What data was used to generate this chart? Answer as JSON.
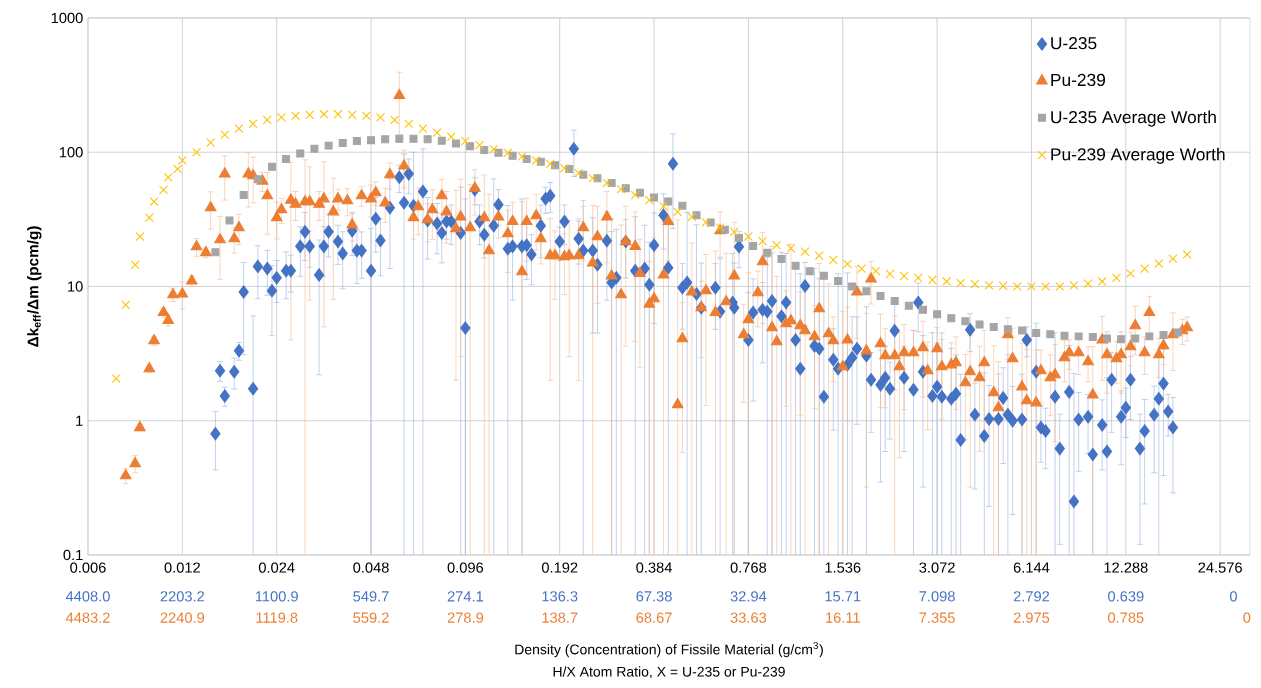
{
  "chart_data": {
    "type": "scatter",
    "xlabel": "Density (Concentration) of Fissile Material (g/cm$^{3}$)",
    "annotations": [
      "H/X Atom Ratio, X = U-235 or Pu-239",
      "4408.0",
      "2203.2",
      "1100.9",
      "549.7",
      "274.1",
      "136.3",
      "67.38",
      "32.94",
      "15.71",
      "7.098",
      "2.792",
      "0.639",
      "0",
      "4483.2",
      "2240.9",
      "1119.8",
      "559.2",
      "278.9",
      "138.7",
      "68.67",
      "33.63",
      "16.11",
      "7.355",
      "2.975",
      "0.785",
      "0"
    ],
    "ylabel": "Δk$_{eff}$/Δm (pcm/g)",
    "log": "xy",
    "grid": true,
    "legend": "top right",
    "xlim": [
      0.006,
      30.6
    ],
    "ylim": [
      0.1,
      1000
    ],
    "xticks": [
      0.006,
      0.012,
      0.024,
      0.048,
      0.096,
      0.192,
      0.384,
      0.768,
      1.536,
      3.072,
      6.144,
      12.288,
      24.576
    ],
    "yticks": [
      0.1,
      1,
      10,
      100,
      1000
    ],
    "series": [
      {
        "name": "U-235",
        "color": "#4472c4",
        "marker": "diamond",
        "x": [
          0.0153,
          0.01583,
          0.01639,
          0.01757,
          0.01819,
          0.01883,
          0.02018,
          0.0209,
          0.0224,
          0.02318,
          0.024,
          0.02572,
          0.02663,
          0.02854,
          0.02955,
          0.03059,
          0.03278,
          0.03394,
          0.03514,
          0.03766,
          0.03899,
          0.04179,
          0.04326,
          0.04479,
          0.048,
          0.04969,
          0.05145,
          0.05514,
          0.05909,
          0.06118,
          0.06334,
          0.06557,
          0.07028,
          0.07275,
          0.07798,
          0.08073,
          0.08357,
          0.08652,
          0.09273,
          0.096,
          0.1029,
          0.1065,
          0.1103,
          0.1182,
          0.1224,
          0.1311,
          0.1358,
          0.1455,
          0.1506,
          0.156,
          0.1671,
          0.173,
          0.1791,
          0.192,
          0.1988,
          0.213,
          0.2206,
          0.2283,
          0.2447,
          0.2533,
          0.2715,
          0.2811,
          0.291,
          0.3119,
          0.3343,
          0.3583,
          0.3709,
          0.384,
          0.4116,
          0.4261,
          0.4411,
          0.4728,
          0.4895,
          0.5245,
          0.5431,
          0.6026,
          0.6238,
          0.684,
          0.6922,
          0.7166,
          0.768,
          0.7951,
          0.8522,
          0.8822,
          0.9133,
          0.9789,
          1.013,
          1.086,
          1.124,
          1.164,
          1.248,
          1.292,
          1.337,
          1.433,
          1.484,
          1.59,
          1.646,
          1.705,
          1.827,
          1.891,
          2.027,
          2.098,
          2.172,
          2.249,
          2.41,
          2.583,
          2.674,
          2.769,
          2.967,
          3.072,
          3.18,
          3.409,
          3.529,
          3.653,
          3.916,
          4.054,
          4.344,
          4.498,
          4.821,
          4.99,
          5.166,
          5.349,
          5.733,
          5.935,
          6.361,
          6.585,
          6.817,
          7.307,
          7.565,
          8.107,
          8.393,
          8.689,
          9.313,
          9.641,
          10.33,
          10.7,
          11.07,
          11.87,
          12.288,
          12.72,
          13.63,
          14.11,
          15.13,
          15.66,
          16.21,
          16.78,
          17.37
        ],
        "values": [
          0.8,
          2.36,
          1.53,
          2.32,
          3.32,
          9.1,
          1.73,
          14.1,
          13.6,
          9.3,
          11.6,
          13.1,
          13.1,
          19.9,
          25.6,
          19.9,
          12.2,
          19.9,
          25.6,
          21.6,
          17.6,
          26,
          18.5,
          18.5,
          13.1,
          32,
          22,
          38.6,
          65,
          42,
          69,
          40,
          51,
          31,
          29.5,
          25,
          30.5,
          30.5,
          25,
          4.9,
          52.6,
          30.5,
          24.3,
          28.4,
          40.7,
          19.1,
          19.9,
          19.9,
          20.3,
          17.3,
          28.4,
          45,
          47.5,
          21.6,
          30.5,
          106,
          22.7,
          18.5,
          18.5,
          14.5,
          21.9,
          10.7,
          11.6,
          21.6,
          13.1,
          13.6,
          10.3,
          20.3,
          34,
          13.8,
          82,
          9.8,
          10.7,
          8.8,
          6.95,
          9.8,
          6.5,
          7.6,
          6.95,
          19.8,
          4.0,
          6.4,
          6.7,
          6.5,
          7.8,
          6.0,
          7.6,
          4.0,
          2.44,
          10.1,
          3.6,
          3.44,
          1.51,
          2.85,
          2.44,
          2.61,
          2.95,
          3.44,
          3.05,
          2.02,
          1.85,
          2.09,
          1.73,
          4.69,
          2.09,
          1.7,
          7.6,
          2.32,
          1.53,
          1.79,
          1.51,
          1.46,
          1.59,
          0.72,
          4.77,
          1.11,
          0.77,
          1.03,
          1.03,
          1.48,
          1.11,
          1.0,
          1.02,
          4.0,
          2.32,
          0.89,
          0.84,
          1.51,
          0.62,
          1.64,
          0.25,
          1.02,
          1.07,
          0.56,
          0.93,
          0.59,
          2.02,
          1.07,
          1.25,
          2.02,
          0.62,
          0.84,
          1.11,
          1.46,
          1.89,
          1.17,
          0.89
        ],
        "errors": [
          0.37,
          0.4,
          0.25,
          0.6,
          0.5,
          6,
          [
            0.1,
            6.03
          ],
          6,
          5,
          5,
          4,
          5,
          4,
          8,
          10,
          6,
          10,
          8,
          9,
          7,
          8,
          9,
          8,
          7,
          [
            0.1,
            27.1
          ],
          14,
          10,
          25,
          15,
          [
            0.1,
            97
          ],
          20,
          [
            0.1,
            100
          ],
          [
            0.1,
            106
          ],
          15,
          12,
          10,
          8,
          10,
          [
            0.1,
            55
          ],
          [
            0.1,
            44.9
          ],
          12,
          10,
          8,
          [
            0.1,
            63.4
          ],
          12,
          [
            0.1,
            40.1
          ],
          12,
          [
            0.1,
            44.9
          ],
          9,
          7,
          12,
          10,
          12,
          6,
          10,
          40,
          8,
          [
            0.1,
            43.5
          ],
          14,
          10,
          14,
          [
            0.1,
            25.7
          ],
          [
            0.1,
            26.6
          ],
          10,
          [
            0.1,
            33.1
          ],
          [
            0.1,
            28.6
          ],
          [
            0.1,
            21.3
          ],
          15,
          15,
          [
            0.1,
            28.8
          ],
          55,
          5,
          [
            0.1,
            35.7
          ],
          [
            0.1,
            28.8
          ],
          [
            0.1,
            14.95
          ],
          5,
          [
            0.1,
            16.5
          ],
          [
            0.1,
            17.6
          ],
          [
            0.1,
            14.95
          ],
          6,
          [
            0.1,
            9
          ],
          5,
          4,
          [
            0.1,
            16.5
          ],
          [
            0.1,
            17.8
          ],
          [
            0.1,
            18
          ],
          [
            0.1,
            17.6
          ],
          [
            0.1,
            14
          ],
          [
            0.1,
            12.44
          ],
          5,
          [
            0.1,
            13.6
          ],
          [
            0.1,
            11.44
          ],
          [
            0.1,
            11.51
          ],
          2,
          [
            0.1,
            12.44
          ],
          [
            0.1,
            12.61
          ],
          [
            0.1,
            5.95
          ],
          2.5,
          [
            0.1,
            7.05
          ],
          1.2,
          1.5,
          1.5,
          1.0,
          3,
          1.5,
          [
            0.1,
            4.7
          ],
          3,
          2,
          [
            0.1,
            4.53
          ],
          [
            0.1,
            3.79
          ],
          [
            0.1,
            4.51
          ],
          [
            0.1,
            3.46
          ],
          [
            0.1,
            3.09
          ],
          [
            0.1,
            2.22
          ],
          1.5,
          0.8,
          [
            0.1,
            2.27
          ],
          0.8,
          [
            0.1,
            2.23
          ],
          1.0,
          [
            0.1,
            3.11
          ],
          0.8,
          [
            0.1,
            2.22
          ],
          1,
          [
            0.1,
            5.32
          ],
          0.4,
          0.4,
          [
            0.1,
            4.51
          ],
          0.5,
          [
            0.1,
            3.64
          ],
          [
            0.1,
            2.25
          ],
          0.6,
          0.5,
          [
            0.1,
            1.56
          ],
          0.5,
          [
            0.1,
            2.09
          ],
          1.2,
          0.6,
          0.5,
          1,
          0.5,
          0.6,
          0.7,
          [
            0.1,
            2.96
          ],
          1.5,
          0.4,
          0.6
        ]
      },
      {
        "name": "Pu-239",
        "color": "#ed7d31",
        "marker": "triangle",
        "x": [
          0.007917,
          0.008485,
          0.008785,
          0.009415,
          0.009747,
          0.01045,
          0.01082,
          0.0112,
          0.012,
          0.01286,
          0.01332,
          0.01427,
          0.01477,
          0.01583,
          0.01639,
          0.01757,
          0.01819,
          0.01949,
          0.02018,
          0.02163,
          0.0224,
          0.024,
          0.02485,
          0.02663,
          0.02757,
          0.02955,
          0.03059,
          0.03278,
          0.03394,
          0.03638,
          0.03766,
          0.04036,
          0.04179,
          0.04479,
          0.048,
          0.04969,
          0.05326,
          0.05514,
          0.05909,
          0.06118,
          0.06557,
          0.06788,
          0.07275,
          0.07532,
          0.08073,
          0.08357,
          0.08957,
          0.09273,
          0.09939,
          0.1029,
          0.1103,
          0.1142,
          0.1224,
          0.1311,
          0.1358,
          0.1455,
          0.1506,
          0.1615,
          0.1671,
          0.1791,
          0.1855,
          0.1988,
          0.2058,
          0.2206,
          0.2283,
          0.2447,
          0.2533,
          0.2715,
          0.2811,
          0.3013,
          0.3119,
          0.3343,
          0.3461,
          0.3709,
          0.384,
          0.4116,
          0.4261,
          0.4567,
          0.4728,
          0.5067,
          0.5431,
          0.5622,
          0.6026,
          0.6238,
          0.652,
          0.6922,
          0.7419,
          0.768,
          0.8231,
          0.8522,
          0.9133,
          0.9455,
          1.013,
          1.049,
          1.124,
          1.164,
          1.248,
          1.292,
          1.384,
          1.433,
          1.536,
          1.59,
          1.705,
          1.827,
          1.891,
          2.027,
          2.098,
          2.249,
          2.328,
          2.41,
          2.583,
          2.769,
          2.866,
          3.072,
          3.18,
          3.409,
          3.529,
          3.782,
          3.916,
          4.196,
          4.344,
          4.656,
          4.821,
          5.166,
          5.349,
          5.733,
          5.935,
          6.361,
          6.585,
          7.058,
          7.307,
          7.831,
          8.107,
          8.689,
          9.313,
          9.641,
          10.33,
          10.7,
          11.47,
          11.87,
          12.72,
          13.17,
          14.11,
          14.61,
          15.66,
          16.21,
          17.37,
          18.62,
          19.28
        ],
        "values": [
          0.39,
          0.48,
          0.89,
          2.44,
          3.95,
          6.4,
          5.6,
          8.7,
          8.8,
          11,
          19.8,
          17.9,
          38.7,
          22.3,
          69,
          22.7,
          27.4,
          69,
          67,
          61,
          47.5,
          32.6,
          37.4,
          44,
          41,
          42.9,
          42.9,
          41,
          45,
          36,
          45,
          43.6,
          28.8,
          47.5,
          45,
          50,
          42,
          68,
          265,
          79,
          32.6,
          39.3,
          31.5,
          37.4,
          47.5,
          36,
          27,
          33,
          27.4,
          54,
          32.6,
          18.5,
          33,
          24.7,
          30.5,
          12.9,
          30.5,
          33.7,
          22.7,
          17,
          17,
          16.7,
          17,
          17,
          27.4,
          15,
          23.5,
          33,
          12,
          8.7,
          21.6,
          19.9,
          12.5,
          7.4,
          8.1,
          12.2,
          30.5,
          1.32,
          4.08,
          9.1,
          6.95,
          9.3,
          6.4,
          26,
          7.7,
          12,
          4.37,
          5.66,
          9,
          15.3,
          4.93,
          3.88,
          5.28,
          5.56,
          5.1,
          4.69,
          4.23,
          6.83,
          4.45,
          3.95,
          2.53,
          4,
          9.1,
          3.32,
          11.4,
          3.75,
          3.05,
          3.05,
          2.53,
          3.21,
          3.21,
          3.5,
          2.36,
          3.44,
          2.53,
          2.61,
          2.71,
          1.92,
          2.32,
          2.09,
          2.71,
          1.62,
          1.25,
          4.37,
          2.9,
          1.79,
          1.41,
          1.36,
          2.36,
          2.09,
          2.2,
          2.95,
          3.21,
          3.21,
          2.75,
          1.56,
          4,
          3.1,
          2.9,
          3.1,
          3.56,
          5.1,
          3.21,
          6.4,
          3.1,
          3.62,
          4.37,
          4.69,
          4.93
        ],
        "errors": [
          0.05,
          0.07,
          0.05,
          0.15,
          0.3,
          0.5,
          0.5,
          1,
          2,
          1,
          3,
          1.5,
          12,
          11,
          25,
          5,
          7,
          30,
          25,
          10,
          23,
          10,
          8,
          40,
          10,
          [
            0.1,
            87.9
          ],
          35,
          10,
          40,
          28,
          8,
          10,
          7,
          8,
          12,
          10,
          12,
          15,
          130,
          25,
          10,
          15,
          10,
          15,
          15,
          15,
          25,
          30,
          [
            0.1,
            57.4
          ],
          20,
          [
            0.1,
            67.6
          ],
          [
            0.1,
            48.5
          ],
          10,
          12,
          12,
          [
            0.1,
            42.9
          ],
          15,
          15,
          8,
          15,
          9,
          8,
          14,
          15,
          12,
          [
            0.1,
            40
          ],
          16,
          18,
          [
            0.1,
            32
          ],
          [
            0.1,
            28.7
          ],
          18,
          16,
          10,
          [
            0.1,
            15.4
          ],
          [
            0.1,
            23.1
          ],
          [
            0.1,
            30.2
          ],
          15,
          [
            0.1,
            31.32
          ],
          3.5,
          [
            0.1,
            21.1
          ],
          4,
          8,
          [
            0.1,
            18.4
          ],
          10,
          [
            0.1,
            17.7
          ],
          [
            0.1,
            30
          ],
          3,
          [
            0.1,
            12.66
          ],
          4,
          10,
          [
            0.1,
            19.93
          ],
          [
            0.1,
            11.88
          ],
          4,
          [
            0.1,
            20.56
          ],
          4,
          [
            0.1,
            10.69
          ],
          3,
          [
            0.1,
            14.83
          ],
          [
            0.1,
            10.45
          ],
          2,
          [
            0.1,
            6.53
          ],
          3,
          5,
          3,
          4,
          2.5,
          1.8,
          [
            0.1,
            6.05
          ],
          2,
          2,
          1.5,
          2,
          1.5,
          1.5,
          1.5,
          1.2,
          1.5,
          1.2,
          2,
          1.5,
          2,
          [
            0.1,
            3.62
          ],
          [
            0.1,
            2.75
          ],
          1.5,
          2,
          [
            0.1,
            3.79
          ],
          [
            0.1,
            3.41
          ],
          [
            0.1,
            3.36
          ],
          1,
          1,
          1.5,
          1,
          0.8,
          1,
          0.8,
          [
            0.1,
            3.56
          ],
          2,
          1.5,
          1,
          1.5,
          1,
          2,
          1,
          2,
          1,
          1,
          2,
          1,
          1
        ]
      },
      {
        "name": "U-235 Average Worth",
        "color": "#a5a5a5",
        "marker": "square",
        "x": [
          0.0153,
          0.01697,
          0.01883,
          0.0209,
          0.02318,
          0.02572,
          0.02854,
          0.03167,
          0.03514,
          0.03899,
          0.04326,
          0.048,
          0.05326,
          0.05909,
          0.06557,
          0.07275,
          0.08073,
          0.08957,
          0.09939,
          0.1103,
          0.1224,
          0.1358,
          0.1506,
          0.1671,
          0.1855,
          0.2058,
          0.2283,
          0.2533,
          0.2811,
          0.3119,
          0.3461,
          0.384,
          0.4261,
          0.4728,
          0.5245,
          0.582,
          0.6458,
          0.7166,
          0.7951,
          0.8822,
          0.9789,
          1.086,
          1.205,
          1.337,
          1.484,
          1.646,
          1.827,
          2.027,
          2.249,
          2.495,
          2.769,
          3.072,
          3.409,
          3.782,
          4.196,
          4.656,
          5.166,
          5.733,
          6.361,
          7.058,
          7.831,
          8.689,
          9.641,
          10.7,
          11.87,
          13.17,
          14.61,
          16.21,
          17.99
        ],
        "values": [
          18,
          31,
          48,
          63,
          78,
          89,
          98,
          106,
          112,
          117,
          121,
          123,
          125,
          126,
          126,
          125,
          122,
          116,
          111,
          104,
          99,
          94,
          89,
          85,
          80,
          75,
          68,
          64,
          59,
          54,
          50,
          46,
          43,
          40,
          34,
          30,
          26.5,
          23,
          20,
          17.8,
          16,
          14.3,
          13,
          12,
          11,
          10,
          9.2,
          8.5,
          7.8,
          7.2,
          6.7,
          6.2,
          5.8,
          5.5,
          5.2,
          5.0,
          4.8,
          4.7,
          4.5,
          4.4,
          4.3,
          4.25,
          4.2,
          4.1,
          4.05,
          4.1,
          4.25,
          4.35,
          4.55
        ]
      },
      {
        "name": "Pu-239 Average Worth",
        "color": "#ffc000",
        "marker": "cross",
        "x": [
          0.007387,
          0.007917,
          0.008485,
          0.008785,
          0.009415,
          0.009747,
          0.01045,
          0.01082,
          0.01159,
          0.012,
          0.01332,
          0.01477,
          0.01639,
          0.01819,
          0.02018,
          0.0224,
          0.02485,
          0.02757,
          0.03059,
          0.03394,
          0.03766,
          0.04179,
          0.04637,
          0.05145,
          0.05708,
          0.06334,
          0.07028,
          0.07798,
          0.08652,
          0.096,
          0.1065,
          0.1182,
          0.1311,
          0.1455,
          0.1615,
          0.1791,
          0.1988,
          0.2206,
          0.2447,
          0.2715,
          0.3013,
          0.3343,
          0.3709,
          0.4116,
          0.4567,
          0.5067,
          0.5622,
          0.6238,
          0.6922,
          0.768,
          0.8522,
          0.9455,
          1.049,
          1.164,
          1.292,
          1.433,
          1.59,
          1.764,
          1.958,
          2.172,
          2.41,
          2.674,
          2.967,
          3.293,
          3.653,
          4.054,
          4.498,
          4.99,
          5.537,
          6.144,
          6.817,
          7.565,
          8.393,
          9.313,
          10.33,
          11.47,
          12.72,
          14.11,
          15.66,
          17.37,
          19.28
        ],
        "values": [
          2.06,
          7.3,
          14.5,
          23.5,
          32.6,
          42.9,
          52.5,
          65,
          75,
          87,
          100,
          118,
          135,
          150,
          163,
          174,
          182,
          187,
          190,
          192,
          192,
          190,
          187,
          182,
          174,
          163,
          150,
          140,
          130,
          121,
          113,
          105,
          99,
          93,
          87,
          82,
          76,
          70,
          64,
          59,
          53,
          48,
          44,
          39.5,
          36,
          33,
          30,
          27.5,
          25.5,
          23.5,
          21.8,
          20.3,
          19.2,
          18.2,
          17,
          15.8,
          14.7,
          13.6,
          13,
          12.4,
          12,
          11.6,
          11.2,
          10.9,
          10.6,
          10.4,
          10.2,
          10.1,
          10,
          10,
          10,
          10,
          10.2,
          10.5,
          10.9,
          11.6,
          12.5,
          13.6,
          14.8,
          16.1,
          17.3
        ]
      }
    ]
  }
}
